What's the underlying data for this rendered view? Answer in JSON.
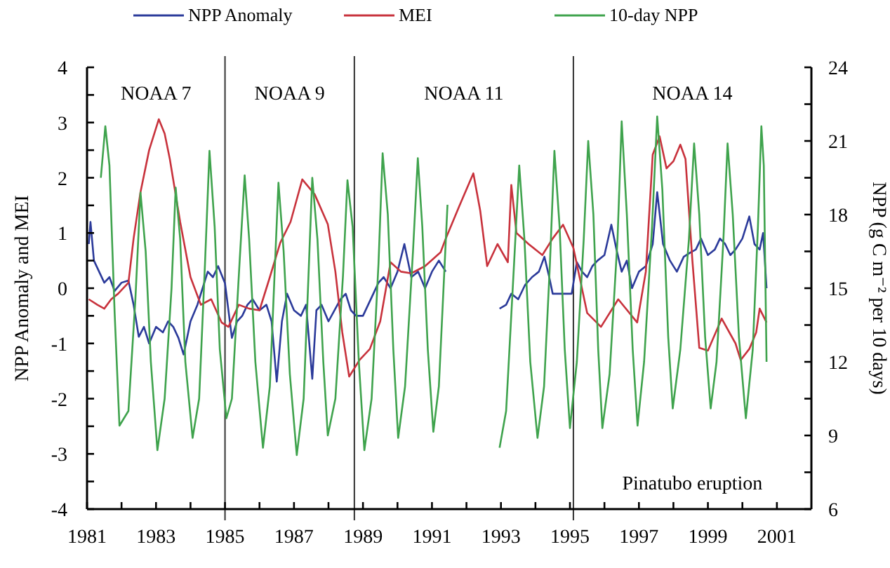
{
  "chart_data": {
    "type": "line",
    "xlabel": null,
    "ylabel": "NPP Anomaly and MEI",
    "y2label": "NPP (g C m⁻² per 10 days)",
    "xlim": [
      1981,
      2002
    ],
    "xticks": [
      1981,
      {
        "value": 1982,
        "label": null
      },
      1983,
      {
        "value": 1984,
        "label": null
      },
      1985,
      {
        "value": 1986,
        "label": null
      },
      1987,
      {
        "value": 1988,
        "label": null
      },
      1989,
      {
        "value": 1990,
        "label": null
      },
      1991,
      {
        "value": 1992,
        "label": null
      },
      1993,
      {
        "value": 1994,
        "label": null
      },
      1995,
      {
        "value": 1996,
        "label": null
      },
      1997,
      {
        "value": 1998,
        "label": null
      },
      1999,
      {
        "value": 2000,
        "label": null
      },
      2001
    ],
    "ylim": [
      -4,
      4
    ],
    "yticks": [
      -4,
      {
        "value": -3.5,
        "label": null
      },
      -3,
      {
        "value": -2.5,
        "label": null
      },
      -2,
      {
        "value": -1.5,
        "label": null
      },
      -1,
      {
        "value": -0.5,
        "label": null
      },
      0,
      {
        "value": 0.5,
        "label": null
      },
      1,
      {
        "value": 1.5,
        "label": null
      },
      2,
      {
        "value": 2.5,
        "label": null
      },
      3,
      {
        "value": 3.5,
        "label": null
      },
      4
    ],
    "y2lim": [
      6,
      24
    ],
    "y2ticks": [
      6,
      {
        "value": 7.5,
        "label": null
      },
      9,
      {
        "value": 10.5,
        "label": null
      },
      12,
      {
        "value": 13.5,
        "label": null
      },
      15,
      {
        "value": 16.5,
        "label": null
      },
      18,
      {
        "value": 19.5,
        "label": null
      },
      21,
      {
        "value": 22.5,
        "label": null
      },
      24
    ],
    "grid": false,
    "legend": "top",
    "marker": "none",
    "line_style": "solid",
    "ref_lines": [
      {
        "axis": "x",
        "value": 1985.0,
        "color": "#333333"
      },
      {
        "axis": "x",
        "value": 1988.75,
        "color": "#333333"
      },
      {
        "axis": "x",
        "value": 1995.1,
        "color": "#333333"
      }
    ],
    "annotations": [
      "NOAA 7",
      "NOAA 9",
      "NOAA 11",
      "NOAA 14",
      "Pinatubo eruption"
    ],
    "series": [
      {
        "name": "NPP Anomaly",
        "color": "#2b3a9a",
        "x": [
          1981.05,
          1981.1,
          1981.2,
          1981.35,
          1981.5,
          1981.65,
          1981.8,
          1982.0,
          1982.2,
          1982.35,
          1982.5,
          1982.65,
          1982.8,
          1983.0,
          1983.2,
          1983.35,
          1983.5,
          1983.65,
          1983.8,
          1984.0,
          1984.2,
          1984.35,
          1984.5,
          1984.65,
          1984.8,
          1985.0,
          1985.2,
          1985.35,
          1985.5,
          1985.65,
          1985.8,
          1986.0,
          1986.2,
          1986.35,
          1986.5,
          1986.65,
          1986.8,
          1987.0,
          1987.2,
          1987.35,
          1987.53,
          1987.65,
          1987.8,
          1988.0,
          1988.2,
          1988.35,
          1988.5,
          1988.65,
          1988.8,
          1989.0,
          1989.15,
          1989.3,
          1989.45,
          1989.6,
          1989.8,
          1990.0,
          1990.2,
          1990.4,
          1990.6,
          1990.8,
          1991.0,
          1991.2,
          1991.4,
          1992.0,
          1992.96,
          1993.15,
          1993.3,
          1993.5,
          1993.7,
          1993.9,
          1994.1,
          1994.26,
          1994.4,
          1994.5,
          1995.05,
          1995.2,
          1995.35,
          1995.5,
          1995.65,
          1995.8,
          1996.0,
          1996.2,
          1996.35,
          1996.5,
          1996.65,
          1996.8,
          1997.0,
          1997.2,
          1997.4,
          1997.53,
          1997.7,
          1997.9,
          1998.1,
          1998.3,
          1998.5,
          1998.65,
          1998.8,
          1999.0,
          1999.2,
          1999.35,
          1999.5,
          1999.65,
          1999.8,
          2000.0,
          2000.2,
          2000.35,
          2000.5,
          2000.6,
          2000.7
        ],
        "values": [
          0.8,
          1.2,
          0.5,
          0.3,
          0.1,
          0.2,
          -0.05,
          0.1,
          0.14,
          -0.3,
          -0.88,
          -0.7,
          -1.0,
          -0.7,
          -0.8,
          -0.6,
          -0.7,
          -0.9,
          -1.2,
          -0.6,
          -0.3,
          0.0,
          0.3,
          0.2,
          0.4,
          0.09,
          -0.9,
          -0.6,
          -0.5,
          -0.3,
          -0.2,
          -0.4,
          -0.3,
          -0.6,
          -1.69,
          -0.6,
          -0.1,
          -0.4,
          -0.5,
          -0.3,
          -1.64,
          -0.4,
          -0.3,
          -0.6,
          -0.37,
          -0.2,
          -0.1,
          -0.4,
          -0.5,
          -0.5,
          -0.3,
          -0.1,
          0.1,
          0.2,
          0.0,
          0.3,
          0.8,
          0.2,
          0.3,
          0.0,
          0.3,
          0.5,
          0.3,
          null,
          -0.37,
          -0.3,
          -0.1,
          -0.2,
          0.06,
          0.2,
          0.3,
          0.57,
          0.2,
          -0.1,
          -0.1,
          0.47,
          0.3,
          0.2,
          0.4,
          0.5,
          0.6,
          1.15,
          0.7,
          0.3,
          0.5,
          0.0,
          0.3,
          0.4,
          0.8,
          1.74,
          0.8,
          0.5,
          0.3,
          0.57,
          0.65,
          0.7,
          0.9,
          0.6,
          0.7,
          0.9,
          0.8,
          0.6,
          0.7,
          0.9,
          1.3,
          0.8,
          0.7,
          1.0,
          0.0
        ]
      },
      {
        "name": "MEI",
        "color": "#c8323c",
        "x": [
          1981.05,
          1981.3,
          1981.5,
          1981.7,
          1981.9,
          1982.2,
          1982.35,
          1982.55,
          1982.8,
          1983.08,
          1983.25,
          1983.4,
          1983.7,
          1984.0,
          1984.3,
          1984.6,
          1984.9,
          1985.1,
          1985.4,
          1985.7,
          1986.0,
          1986.3,
          1986.6,
          1986.9,
          1987.24,
          1987.6,
          1987.98,
          1988.2,
          1988.4,
          1988.6,
          1988.9,
          1989.2,
          1989.5,
          1989.8,
          1990.1,
          1990.4,
          1990.8,
          1991.25,
          1991.4,
          1991.8,
          1992.2,
          1992.4,
          1992.6,
          1992.9,
          1993.2,
          1993.3,
          1993.45,
          1993.8,
          1994.2,
          1994.5,
          1994.8,
          1995.1,
          1995.5,
          1995.9,
          1996.4,
          1996.95,
          1997.2,
          1997.4,
          1997.6,
          1997.8,
          1998.0,
          1998.2,
          1998.35,
          1998.55,
          1998.75,
          1999.0,
          1999.4,
          1999.8,
          1999.95,
          2000.2,
          2000.4,
          2000.5,
          2000.7
        ],
        "values": [
          -0.2,
          -0.3,
          -0.37,
          -0.2,
          -0.1,
          0.1,
          0.9,
          1.74,
          2.5,
          3.06,
          2.8,
          2.34,
          1.2,
          0.2,
          -0.3,
          -0.2,
          -0.62,
          -0.7,
          -0.3,
          -0.37,
          -0.4,
          0.2,
          0.82,
          1.2,
          1.97,
          1.7,
          1.16,
          0.3,
          -0.8,
          -1.6,
          -1.3,
          -1.1,
          -0.6,
          0.47,
          0.3,
          0.27,
          0.4,
          0.65,
          0.9,
          1.5,
          2.08,
          1.4,
          0.4,
          0.8,
          0.47,
          1.87,
          1.0,
          0.8,
          0.6,
          0.9,
          1.15,
          0.73,
          -0.45,
          -0.7,
          -0.2,
          -0.62,
          0.3,
          2.42,
          2.75,
          2.17,
          2.3,
          2.6,
          2.34,
          0.5,
          -1.08,
          -1.13,
          -0.55,
          -1.0,
          -1.3,
          -1.1,
          -0.8,
          -0.37,
          -0.62
        ]
      },
      {
        "name": "10-day NPP",
        "color": "#3fa34d",
        "axis": "y2",
        "x": [
          1981.4,
          1981.53,
          1981.65,
          1981.8,
          1981.94,
          1982.2,
          1982.4,
          1982.55,
          1982.7,
          1982.85,
          1983.04,
          1983.25,
          1983.45,
          1983.57,
          1983.7,
          1983.85,
          1984.06,
          1984.25,
          1984.42,
          1984.55,
          1984.7,
          1984.85,
          1985.04,
          1985.2,
          1985.42,
          1985.57,
          1985.7,
          1985.88,
          1986.1,
          1986.3,
          1986.45,
          1986.55,
          1986.7,
          1986.88,
          1987.08,
          1987.28,
          1987.42,
          1987.53,
          1987.68,
          1987.85,
          1987.98,
          1988.2,
          1988.42,
          1988.55,
          1988.7,
          1988.88,
          1989.04,
          1989.25,
          1989.45,
          1989.57,
          1989.72,
          1989.88,
          1990.02,
          1990.22,
          1990.45,
          1990.59,
          1990.72,
          1990.88,
          1991.04,
          1991.2,
          1991.45,
          1992.0,
          1992.96,
          1993.15,
          1993.38,
          1993.53,
          1993.68,
          1993.85,
          1994.06,
          1994.25,
          1994.42,
          1994.55,
          1994.7,
          1994.85,
          1995.0,
          1995.2,
          1995.4,
          1995.53,
          1995.68,
          1995.82,
          1995.94,
          1996.15,
          1996.38,
          1996.5,
          1996.65,
          1996.82,
          1996.96,
          1997.15,
          1997.38,
          1997.53,
          1997.68,
          1997.85,
          1997.98,
          1998.2,
          1998.45,
          1998.6,
          1998.75,
          1998.92,
          1999.08,
          1999.25,
          1999.45,
          1999.57,
          1999.72,
          1999.9,
          2000.1,
          2000.3,
          2000.45,
          2000.55,
          2000.62,
          2000.7
        ],
        "values": [
          19.5,
          21.6,
          20.0,
          14.0,
          9.4,
          10.0,
          14.5,
          18.9,
          16.5,
          12.0,
          8.4,
          10.5,
          15.0,
          19.1,
          17.0,
          12.0,
          8.9,
          10.5,
          16.0,
          20.6,
          17.5,
          12.5,
          9.7,
          10.5,
          16.0,
          19.6,
          17.0,
          12.0,
          8.5,
          11.0,
          16.0,
          19.3,
          16.5,
          11.5,
          8.2,
          10.5,
          15.5,
          19.5,
          17.0,
          12.0,
          9.0,
          10.5,
          15.5,
          19.4,
          17.5,
          12.0,
          8.4,
          10.5,
          16.0,
          20.5,
          18.0,
          12.5,
          8.9,
          11.0,
          16.5,
          20.3,
          17.5,
          12.5,
          9.15,
          11.0,
          18.4,
          null,
          8.5,
          10.0,
          16.0,
          20.0,
          17.0,
          12.0,
          8.9,
          11.0,
          16.0,
          20.6,
          17.5,
          12.5,
          9.3,
          12.0,
          17.0,
          21.0,
          18.0,
          12.5,
          9.3,
          11.5,
          17.0,
          21.8,
          18.0,
          12.5,
          9.4,
          12.0,
          17.5,
          22.0,
          19.0,
          13.0,
          10.1,
          12.5,
          17.0,
          20.9,
          18.0,
          13.0,
          10.1,
          12.0,
          17.0,
          20.9,
          18.0,
          13.0,
          9.7,
          12.5,
          17.5,
          21.6,
          20.0,
          12.0
        ]
      }
    ]
  }
}
